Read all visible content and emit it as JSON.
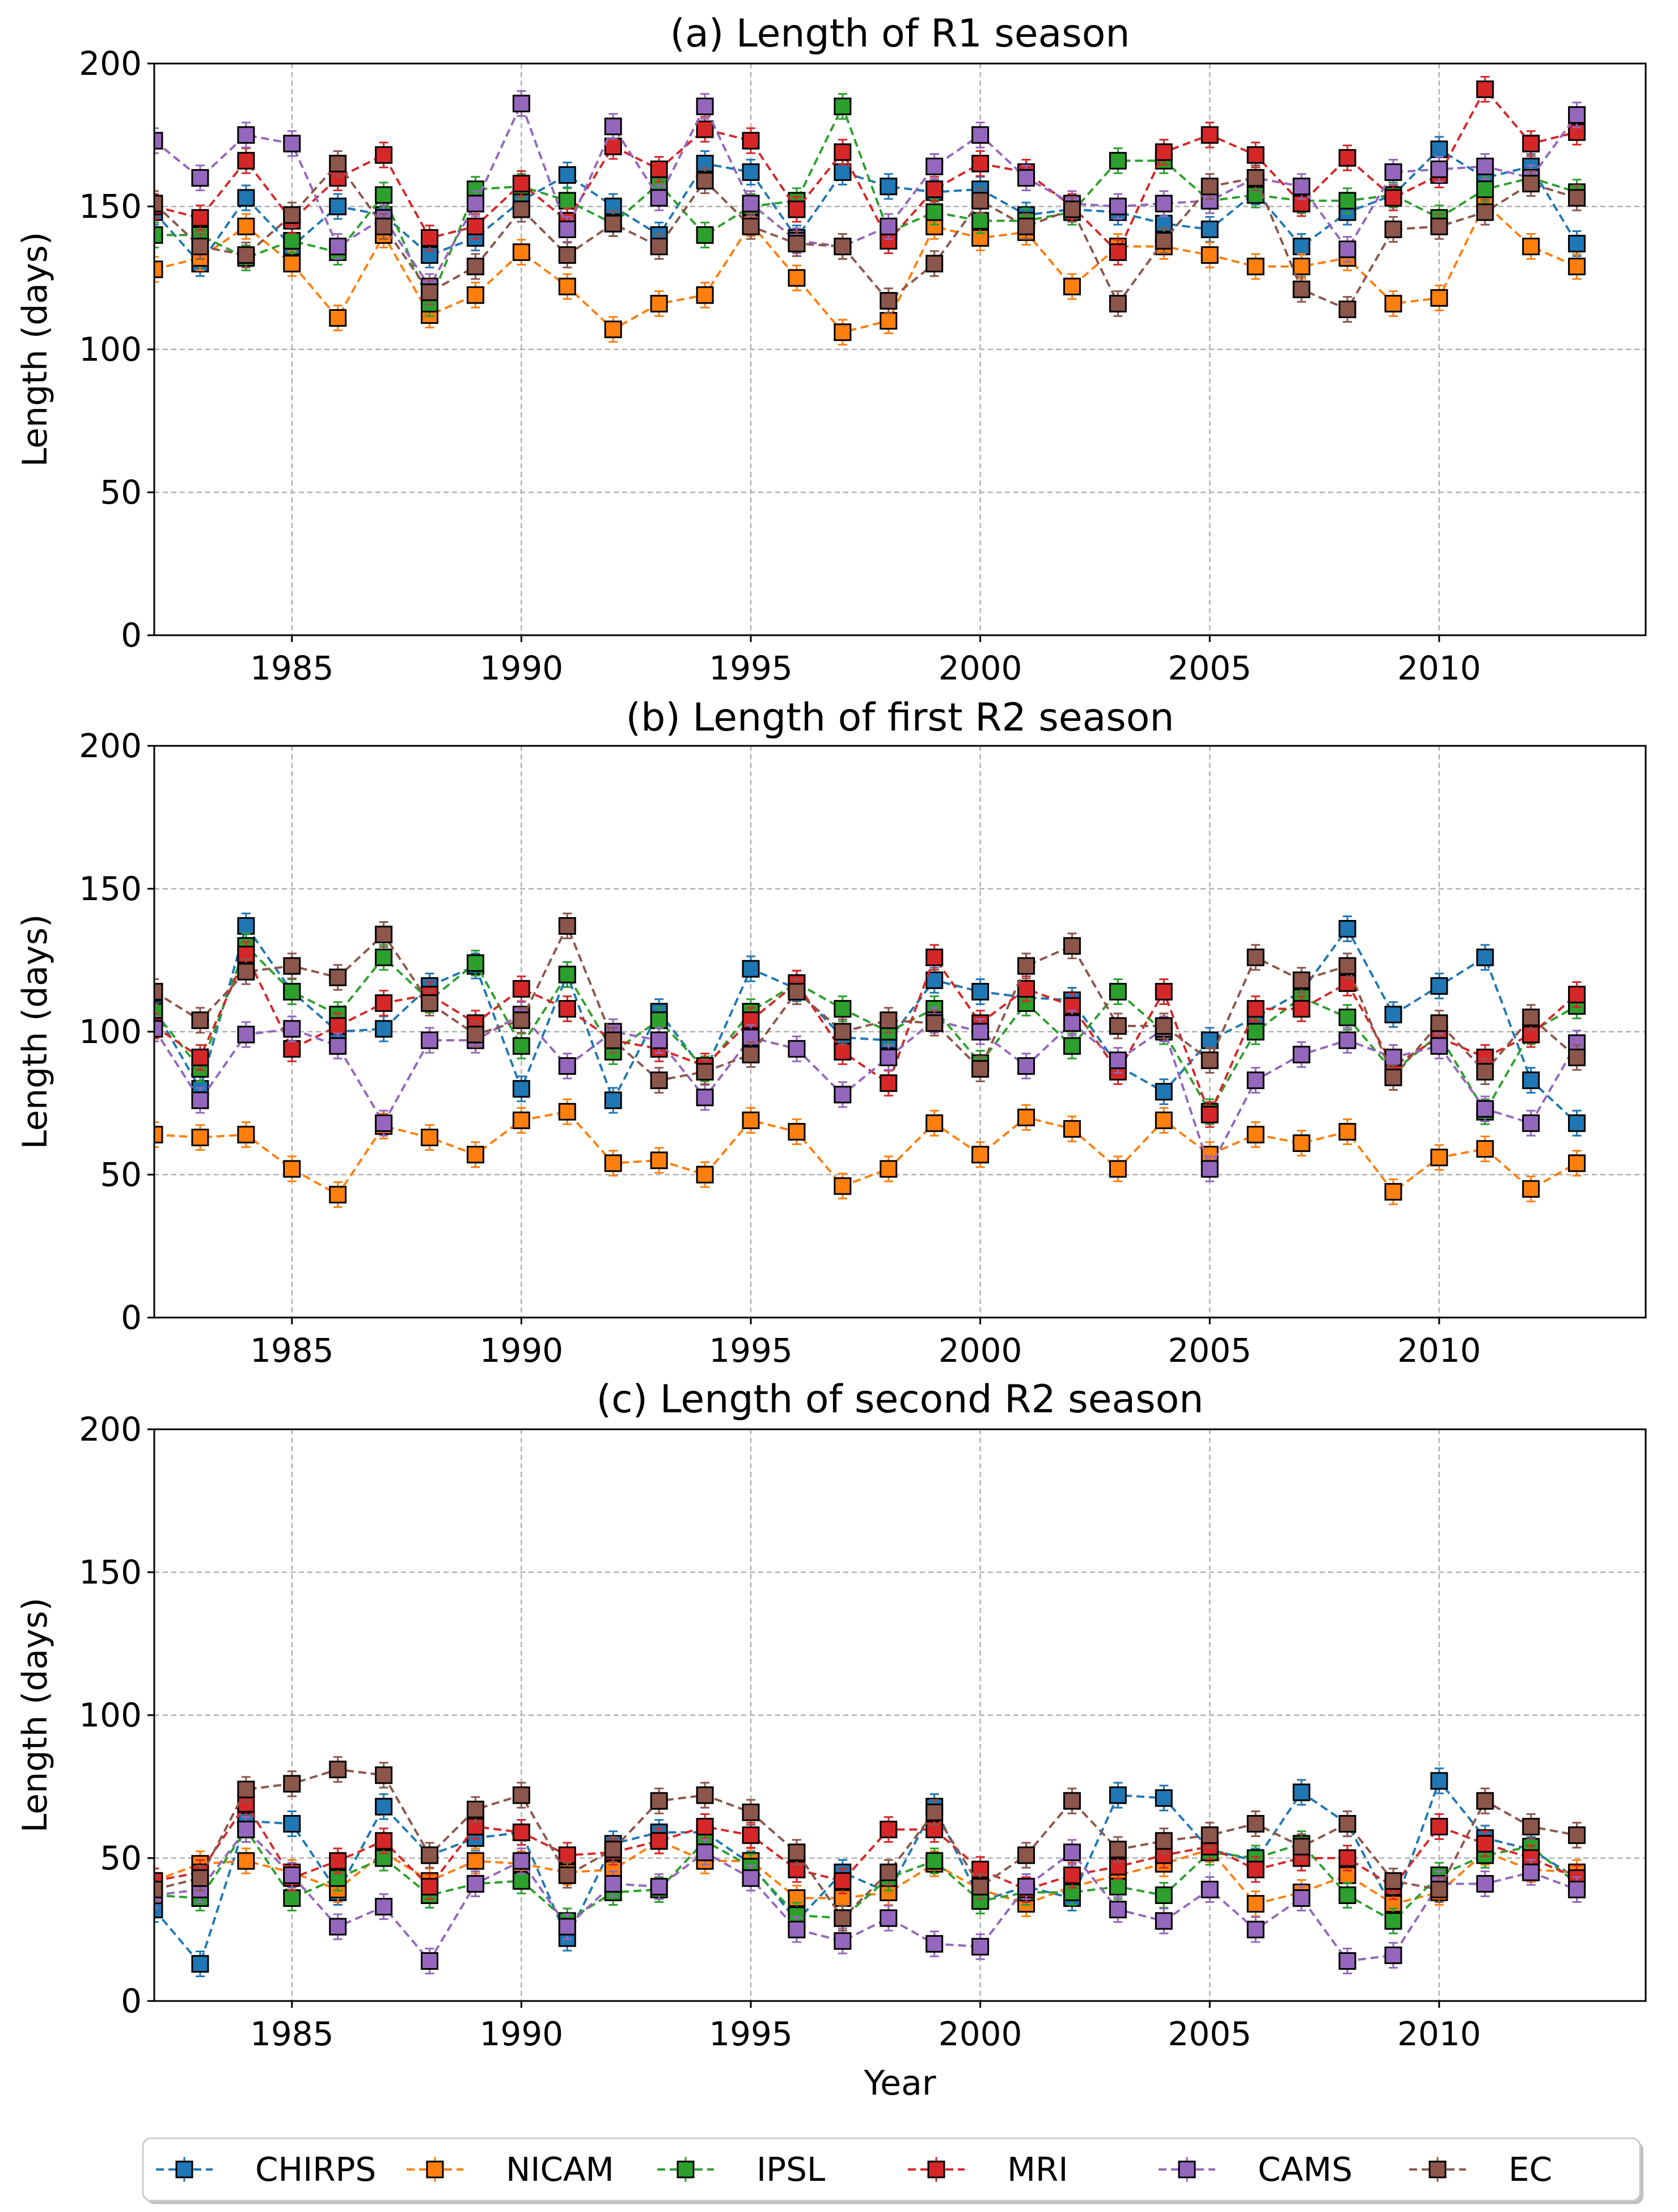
{
  "figure": {
    "xlabel": "Year"
  },
  "colors": {
    "CHIRPS": "#1f77b4",
    "NICAM": "#ff7f0e",
    "IPSL": "#2ca02c",
    "MRI": "#d62728",
    "CAMS": "#9467bd",
    "EC": "#8c564b"
  },
  "legend": [
    "CHIRPS",
    "NICAM",
    "IPSL",
    "MRI",
    "CAMS",
    "EC"
  ],
  "chart_data": [
    {
      "type": "line",
      "title": "(a) Length of R1 season",
      "xlabel": "",
      "ylabel": "Length (days)",
      "xlim": [
        1982,
        2014.5
      ],
      "ylim": [
        0,
        200
      ],
      "xticks": [
        1985,
        1990,
        1995,
        2000,
        2005,
        2010
      ],
      "yticks": [
        0,
        50,
        100,
        150,
        200
      ],
      "grid": true,
      "x": [
        1982,
        1983,
        1984,
        1985,
        1986,
        1987,
        1988,
        1989,
        1990,
        1991,
        1992,
        1993,
        1994,
        1995,
        1996,
        1997,
        1998,
        1999,
        2000,
        2001,
        2002,
        2003,
        2004,
        2005,
        2006,
        2007,
        2008,
        2009,
        2010,
        2011,
        2012,
        2013
      ],
      "series": [
        {
          "name": "CHIRPS",
          "values": [
            148,
            130,
            153,
            136,
            150,
            147,
            133,
            139,
            152,
            161,
            150,
            140,
            165,
            162,
            139,
            162,
            157,
            155,
            156,
            147,
            149,
            148,
            144,
            142,
            155,
            136,
            148,
            154,
            170,
            160,
            164,
            137
          ]
        },
        {
          "name": "NICAM",
          "values": [
            128,
            132,
            143,
            130,
            111,
            140,
            112,
            119,
            134,
            122,
            107,
            116,
            119,
            144,
            125,
            106,
            110,
            143,
            139,
            141,
            122,
            136,
            136,
            133,
            129,
            129,
            132,
            116,
            118,
            151,
            136,
            129
          ]
        },
        {
          "name": "IPSL",
          "values": [
            140,
            140,
            132,
            138,
            134,
            154,
            116,
            156,
            157,
            152,
            144,
            158,
            140,
            150,
            152,
            185,
            141,
            148,
            145,
            145,
            148,
            166,
            166,
            152,
            154,
            152,
            152,
            154,
            146,
            156,
            160,
            155
          ]
        },
        {
          "name": "MRI",
          "values": [
            150,
            146,
            166,
            145,
            160,
            168,
            139,
            143,
            158,
            145,
            171,
            163,
            177,
            173,
            149,
            169,
            138,
            156,
            165,
            162,
            150,
            134,
            169,
            175,
            168,
            151,
            167,
            153,
            161,
            191,
            172,
            176
          ]
        },
        {
          "name": "CAMS",
          "values": [
            173,
            160,
            175,
            172,
            136,
            146,
            122,
            151,
            186,
            142,
            178,
            153,
            185,
            151,
            138,
            136,
            143,
            164,
            175,
            160,
            151,
            150,
            151,
            152,
            160,
            157,
            135,
            162,
            163,
            164,
            160,
            182
          ]
        },
        {
          "name": "EC",
          "values": [
            151,
            136,
            133,
            147,
            165,
            143,
            120,
            129,
            149,
            133,
            144,
            136,
            159,
            143,
            137,
            136,
            117,
            130,
            152,
            143,
            149,
            116,
            138,
            157,
            160,
            121,
            114,
            142,
            143,
            148,
            158,
            153
          ]
        }
      ]
    },
    {
      "type": "line",
      "title": "(b) Length of first R2 season",
      "xlabel": "",
      "ylabel": "Length (days)",
      "xlim": [
        1982,
        2014.5
      ],
      "ylim": [
        0,
        200
      ],
      "xticks": [
        1985,
        1990,
        1995,
        2000,
        2005,
        2010
      ],
      "yticks": [
        0,
        50,
        100,
        150,
        200
      ],
      "grid": true,
      "x": [
        1982,
        1983,
        1984,
        1985,
        1986,
        1987,
        1988,
        1989,
        1990,
        1991,
        1992,
        1993,
        1994,
        1995,
        1996,
        1997,
        1998,
        1999,
        2000,
        2001,
        2002,
        2003,
        2004,
        2005,
        2006,
        2007,
        2008,
        2009,
        2010,
        2011,
        2012,
        2013
      ],
      "series": [
        {
          "name": "CHIRPS",
          "values": [
            108,
            80,
            137,
            114,
            100,
            101,
            116,
            123,
            80,
            120,
            76,
            107,
            86,
            122,
            115,
            98,
            97,
            118,
            114,
            112,
            111,
            88,
            79,
            97,
            105,
            114,
            136,
            106,
            116,
            126,
            83,
            68
          ]
        },
        {
          "name": "NICAM",
          "values": [
            64,
            63,
            64,
            52,
            43,
            67,
            63,
            57,
            69,
            72,
            54,
            55,
            50,
            69,
            65,
            46,
            52,
            68,
            57,
            70,
            66,
            52,
            69,
            57,
            64,
            61,
            65,
            44,
            56,
            59,
            45,
            54
          ]
        },
        {
          "name": "IPSL",
          "values": [
            107,
            87,
            130,
            114,
            106,
            126,
            111,
            124,
            95,
            120,
            93,
            104,
            87,
            107,
            117,
            108,
            100,
            108,
            89,
            110,
            95,
            114,
            100,
            72,
            100,
            112,
            105,
            86,
            99,
            72,
            100,
            109
          ]
        },
        {
          "name": "MRI",
          "values": [
            102,
            91,
            127,
            94,
            102,
            110,
            113,
            103,
            115,
            108,
            97,
            94,
            88,
            104,
            117,
            93,
            82,
            126,
            103,
            115,
            109,
            86,
            114,
            71,
            108,
            108,
            117,
            88,
            98,
            91,
            99,
            113
          ]
        },
        {
          "name": "CAMS",
          "values": [
            101,
            76,
            99,
            101,
            95,
            68,
            97,
            97,
            106,
            88,
            100,
            97,
            77,
            98,
            94,
            78,
            91,
            104,
            100,
            88,
            103,
            90,
            101,
            52,
            83,
            92,
            97,
            91,
            95,
            73,
            68,
            96
          ]
        },
        {
          "name": "EC",
          "values": [
            114,
            104,
            121,
            123,
            119,
            134,
            110,
            99,
            104,
            137,
            97,
            83,
            86,
            92,
            114,
            100,
            104,
            103,
            87,
            123,
            130,
            102,
            102,
            90,
            126,
            118,
            123,
            84,
            103,
            86,
            105,
            91
          ]
        }
      ]
    },
    {
      "type": "line",
      "title": "(c) Length of second R2 season",
      "xlabel": "Year",
      "ylabel": "Length (days)",
      "xlim": [
        1982,
        2014.5
      ],
      "ylim": [
        0,
        200
      ],
      "xticks": [
        1985,
        1990,
        1995,
        2000,
        2005,
        2010
      ],
      "yticks": [
        0,
        50,
        100,
        150,
        200
      ],
      "grid": true,
      "x": [
        1982,
        1983,
        1984,
        1985,
        1986,
        1987,
        1988,
        1989,
        1990,
        1991,
        1992,
        1993,
        1994,
        1995,
        1996,
        1997,
        1998,
        1999,
        2000,
        2001,
        2002,
        2003,
        2004,
        2005,
        2006,
        2007,
        2008,
        2009,
        2010,
        2011,
        2012,
        2013
      ],
      "series": [
        {
          "name": "CHIRPS",
          "values": [
            32,
            13,
            63,
            62,
            38,
            68,
            51,
            57,
            59,
            22,
            55,
            59,
            59,
            48,
            28,
            45,
            38,
            68,
            35,
            40,
            36,
            72,
            71,
            53,
            49,
            73,
            62,
            32,
            77,
            57,
            53,
            43
          ]
        },
        {
          "name": "NICAM",
          "values": [
            42,
            48,
            49,
            45,
            39,
            52,
            42,
            49,
            48,
            45,
            46,
            56,
            49,
            49,
            36,
            36,
            38,
            48,
            39,
            34,
            40,
            44,
            48,
            53,
            34,
            38,
            44,
            34,
            38,
            52,
            46,
            45
          ]
        },
        {
          "name": "IPSL",
          "values": [
            37,
            36,
            60,
            36,
            43,
            50,
            37,
            41,
            42,
            28,
            38,
            39,
            56,
            47,
            30,
            29,
            43,
            49,
            35,
            38,
            38,
            40,
            37,
            52,
            50,
            55,
            37,
            28,
            44,
            51,
            54,
            41
          ]
        },
        {
          "name": "MRI",
          "values": [
            42,
            45,
            69,
            43,
            49,
            56,
            40,
            61,
            59,
            51,
            52,
            56,
            61,
            58,
            46,
            42,
            60,
            60,
            46,
            39,
            44,
            47,
            51,
            54,
            46,
            50,
            50,
            40,
            61,
            55,
            50,
            43
          ]
        },
        {
          "name": "CAMS",
          "values": [
            37,
            39,
            60,
            44,
            26,
            33,
            14,
            41,
            49,
            26,
            41,
            40,
            52,
            43,
            25,
            21,
            29,
            20,
            19,
            40,
            52,
            32,
            28,
            39,
            25,
            36,
            14,
            16,
            41,
            41,
            45,
            39
          ]
        },
        {
          "name": "EC",
          "values": [
            39,
            43,
            74,
            76,
            81,
            79,
            51,
            67,
            72,
            44,
            53,
            70,
            72,
            66,
            52,
            29,
            45,
            66,
            40,
            51,
            70,
            53,
            56,
            58,
            62,
            54,
            62,
            42,
            39,
            70,
            61,
            58
          ]
        }
      ]
    }
  ]
}
